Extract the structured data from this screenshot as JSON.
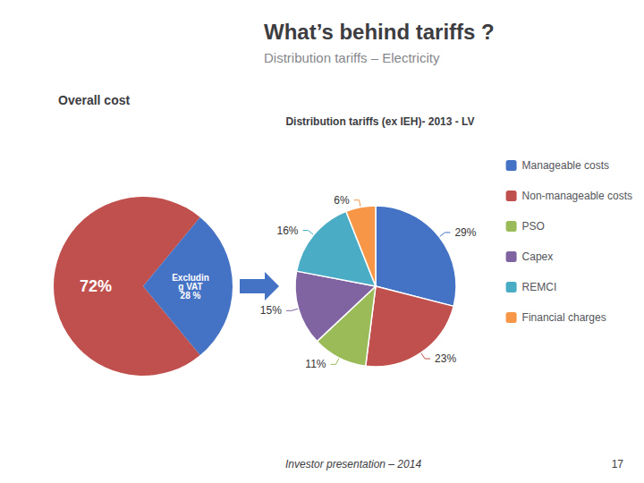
{
  "title": "What’s behind tariffs ?",
  "subtitle": "Distribution tariffs – Electricity",
  "annotations": [
    "Investor presentation – 2014",
    "17"
  ],
  "chart_data": [
    {
      "type": "pie",
      "title": "Overall cost",
      "values": [
        72,
        28
      ],
      "value_labels": [
        "72%",
        "Excludin\ng VAT\n28 %"
      ],
      "colors": [
        "#c0504d",
        "#4472c4"
      ],
      "data_labels": true
    },
    {
      "type": "pie",
      "title": "Distribution tariffs (ex IEH)- 2013 - LV",
      "categories": [
        "Manageable costs",
        "Non-manageable costs",
        "PSO",
        "Capex",
        "REMCI",
        "Financial charges"
      ],
      "values": [
        29,
        23,
        11,
        15,
        16,
        6
      ],
      "value_labels": [
        "29%",
        "23%",
        "11%",
        "15%",
        "16%",
        "6%"
      ],
      "colors": [
        "#4472c4",
        "#c0504d",
        "#9bbb59",
        "#8064a2",
        "#4bacc6",
        "#f79646"
      ],
      "data_labels": true,
      "legend": "right"
    }
  ]
}
